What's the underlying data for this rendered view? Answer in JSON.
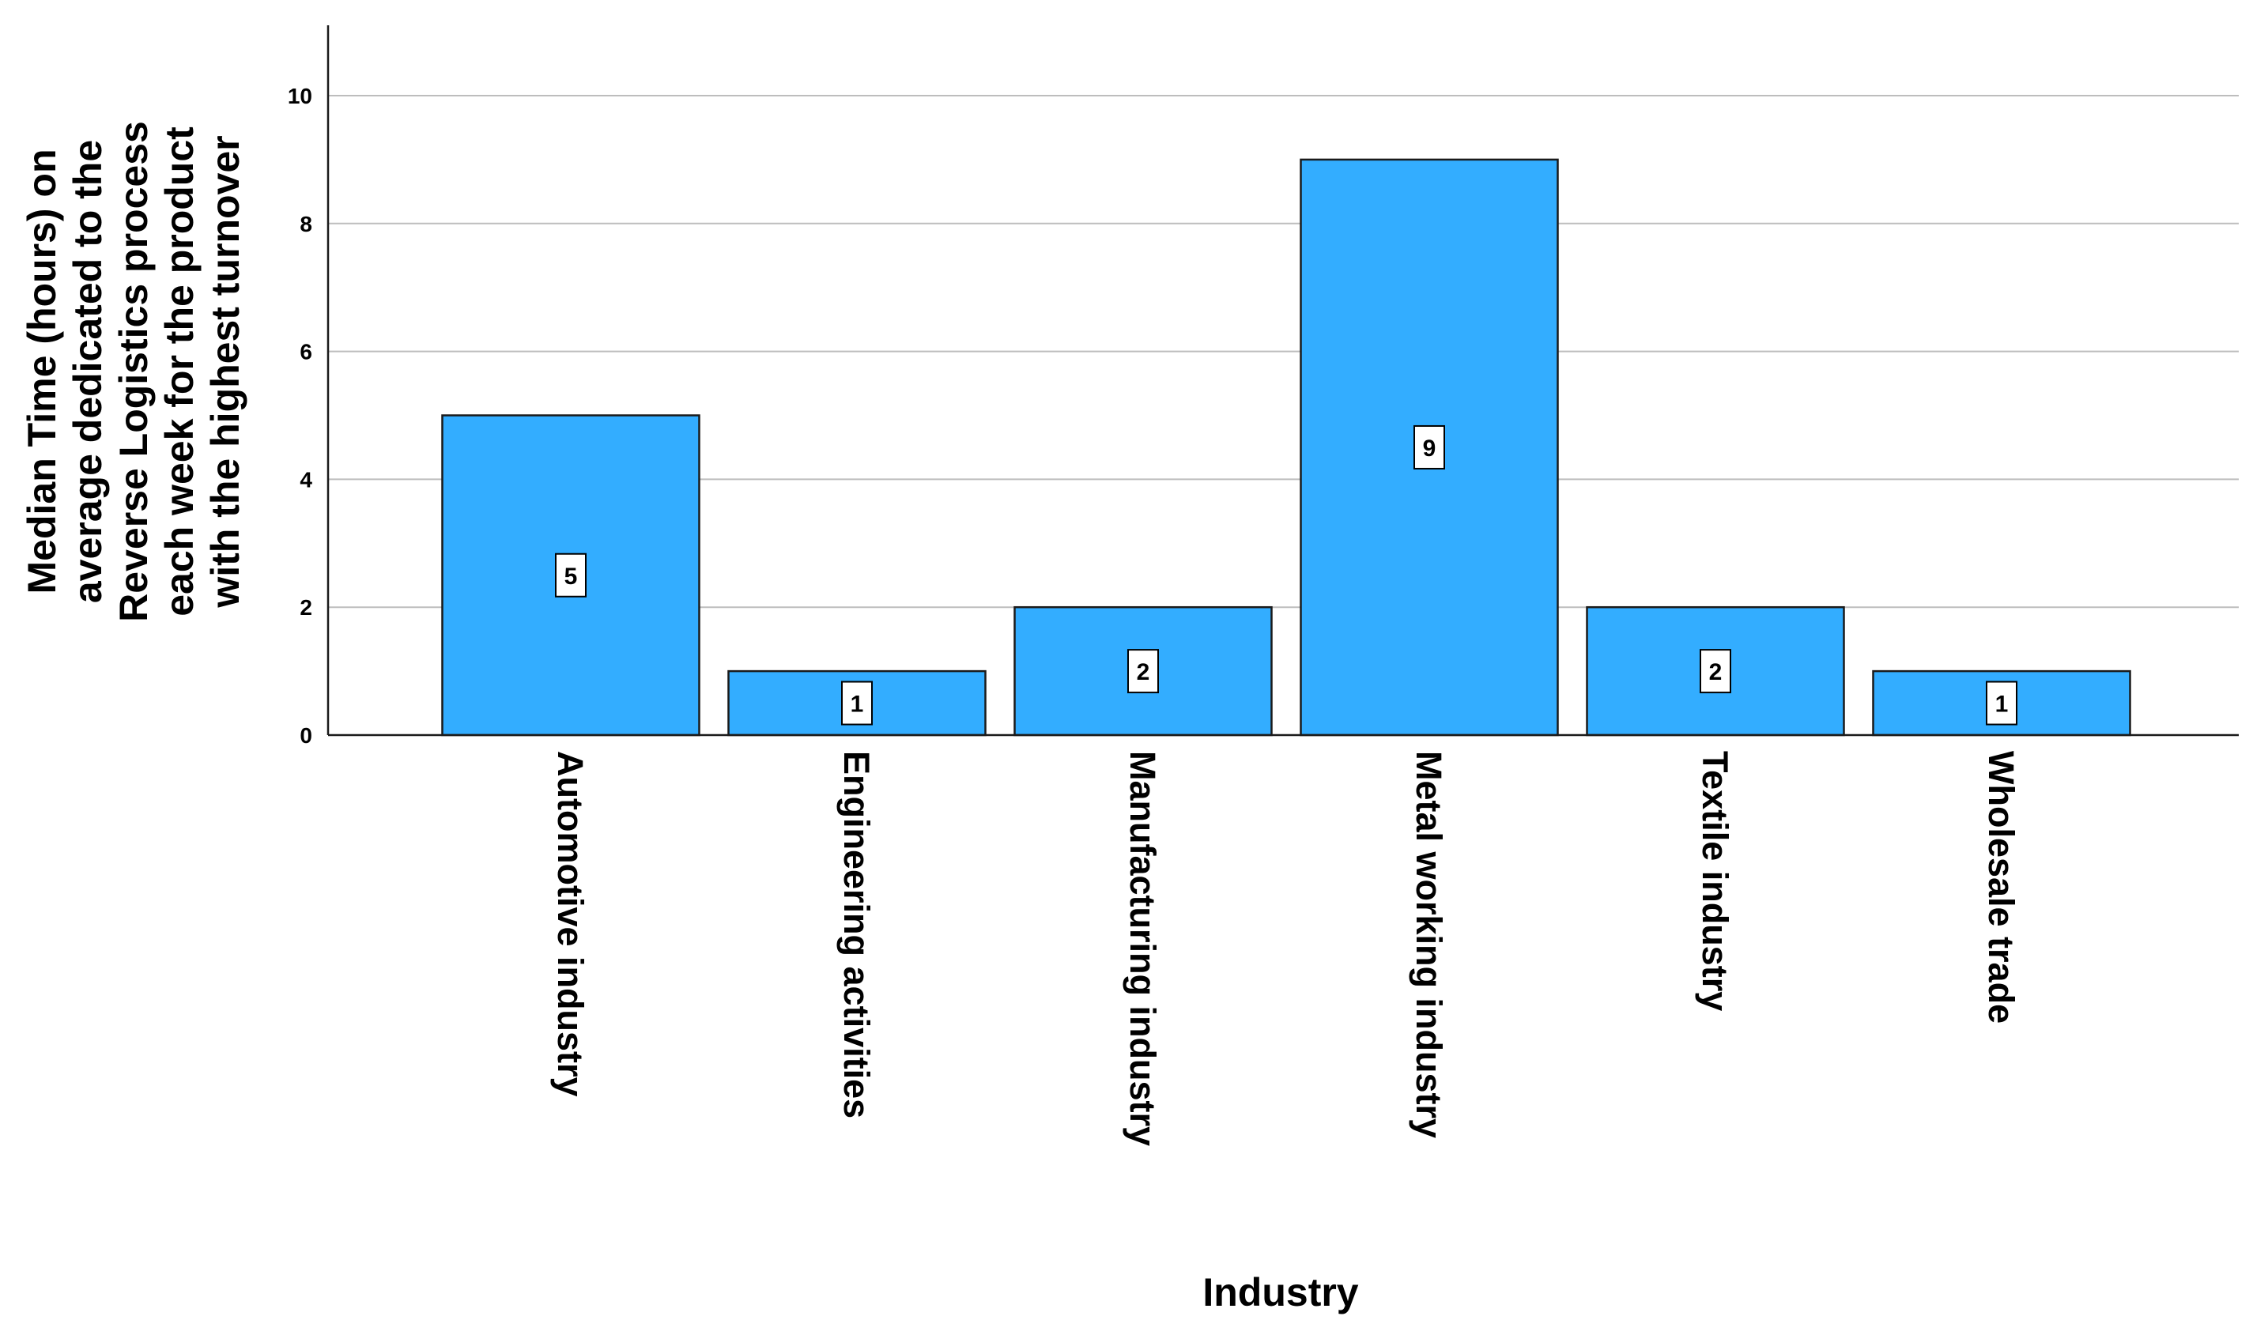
{
  "chart_data": {
    "type": "bar",
    "categories": [
      "Automotive industry",
      "Engineering activities",
      "Manufacturing industry",
      "Metal working industry",
      "Textile industry",
      "Wholesale trade"
    ],
    "values": [
      5,
      1,
      2,
      9,
      2,
      1
    ],
    "data_labels": [
      "5",
      "1",
      "2",
      "9",
      "2",
      "1"
    ],
    "xlabel": "Industry",
    "ylabel_lines": [
      "Median Time (hours) on",
      "average dedicated to the",
      "Reverse Logistics process",
      "each week for the product",
      "with the highest turnover"
    ],
    "ylim": [
      0,
      11.1
    ],
    "yticks": [
      "0",
      "2",
      "4",
      "6",
      "8",
      "10"
    ],
    "ytick_values": [
      0,
      2,
      4,
      6,
      8,
      10
    ],
    "grid": true,
    "legend": "none",
    "colors": {
      "bar_fill": "#33adff",
      "bar_stroke": "#1a1a1a",
      "grid": "#bdbdbd",
      "axis": "#1a1a1a"
    }
  }
}
